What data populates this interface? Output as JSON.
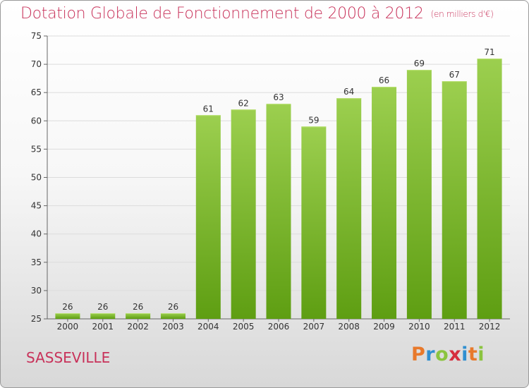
{
  "title": "Dotation Globale de Fonctionnement de 2000 à 2012",
  "subtitle": "(en milliers d'€)",
  "commune": "SASSEVILLE",
  "logo": {
    "letters": [
      "P",
      "r",
      "o",
      "x",
      "i",
      "t",
      "i"
    ],
    "colors": [
      "#e8792b",
      "#2f8fd0",
      "#8bc43f",
      "#d62e3e",
      "#2f8fd0",
      "#e8792b",
      "#8bc43f"
    ]
  },
  "colors": {
    "title": "#c8325a",
    "bar_top": "#9ccf4f",
    "bar_bottom": "#5e9e12",
    "grid": "#dcdcdc"
  },
  "chart_data": {
    "type": "bar",
    "title": "Dotation Globale de Fonctionnement de 2000 à 2012",
    "subtitle": "(en milliers d'€)",
    "xlabel": "",
    "ylabel": "",
    "categories": [
      "2000",
      "2001",
      "2002",
      "2003",
      "2004",
      "2005",
      "2006",
      "2007",
      "2008",
      "2009",
      "2010",
      "2011",
      "2012"
    ],
    "values": [
      26,
      26,
      26,
      26,
      61,
      62,
      63,
      59,
      64,
      66,
      69,
      67,
      71
    ],
    "ylim": [
      25,
      75
    ],
    "yticks": [
      25,
      30,
      35,
      40,
      45,
      50,
      55,
      60,
      65,
      70,
      75
    ],
    "grid": true,
    "legend": "none"
  }
}
